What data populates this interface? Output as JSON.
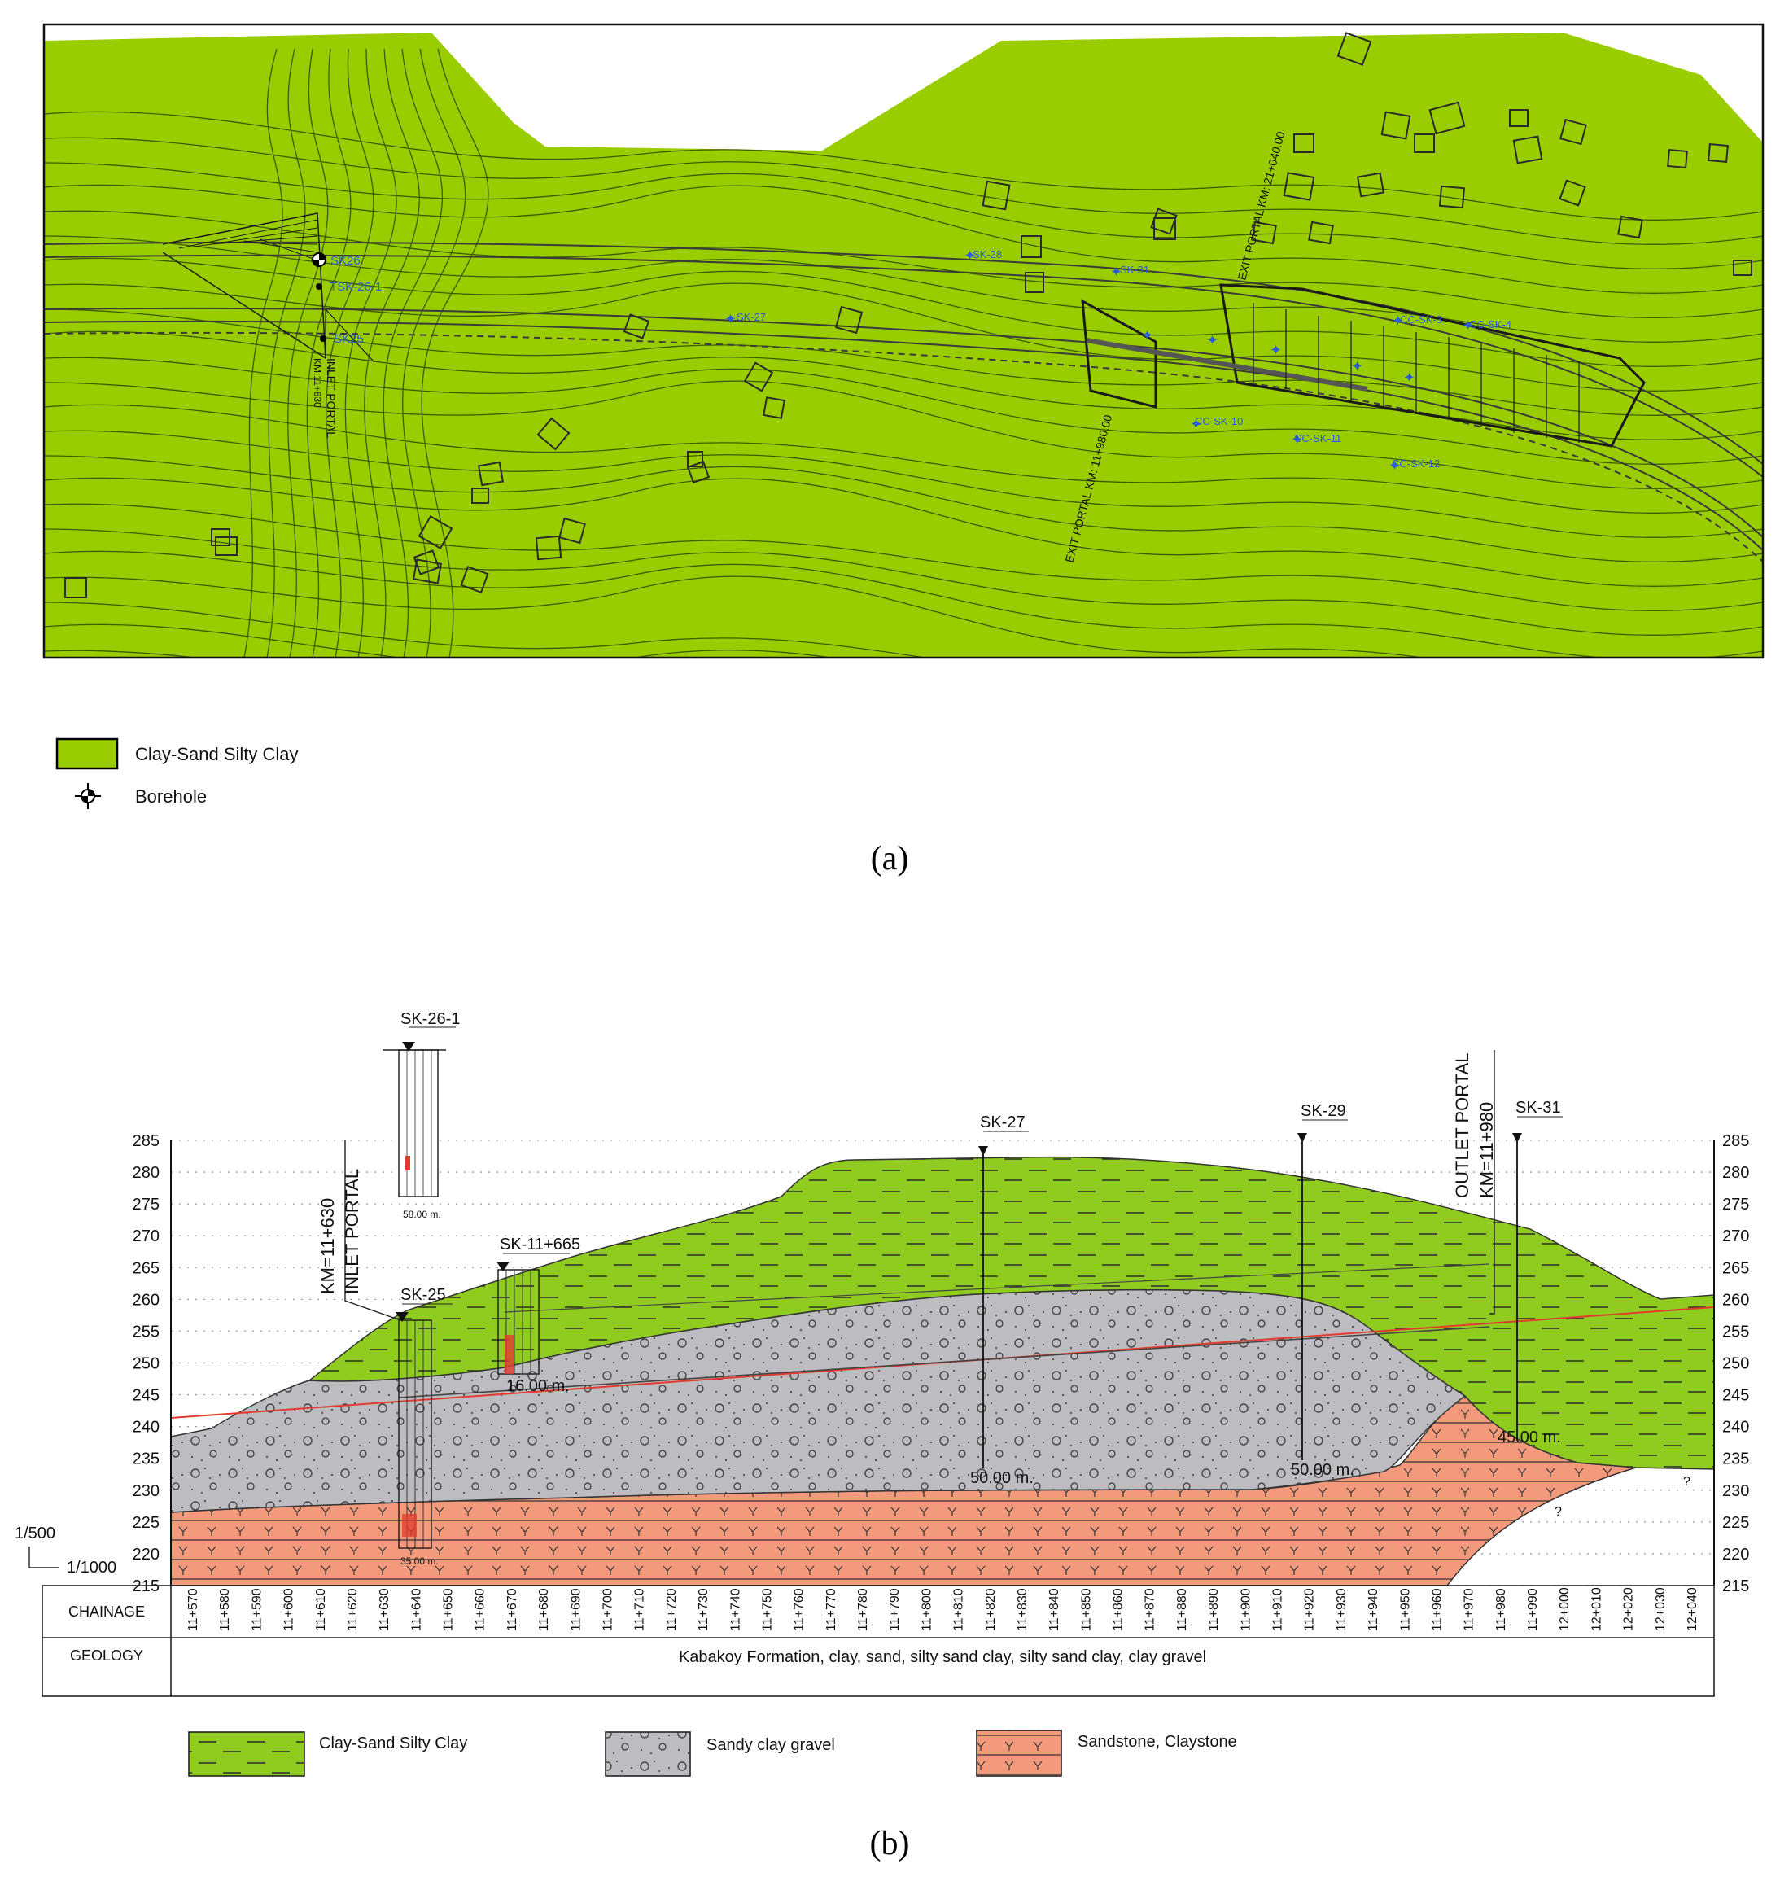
{
  "panel_a": {
    "boreholes": [
      "SK26",
      "TSK-26-1",
      "SK25",
      "SK-28",
      "SK-27",
      "SK-31",
      "CC-SK-3",
      "CC-SK-4",
      "CC-SK-10",
      "CC-SK-11",
      "CC-SK-12"
    ],
    "inlet_portal": "INLET PORTAL",
    "inlet_km": "KM:11+630",
    "exit_portal_1": "EXIT PORTAL KM: 11+980.00",
    "exit_portal_2": "EXIT PORTAL KM: 21+040.00",
    "legend": [
      {
        "label": "Clay-Sand Silty Clay",
        "color": "#9acd00"
      },
      {
        "label": "Borehole"
      }
    ],
    "caption": "(a)"
  },
  "panel_b": {
    "boreholes": {
      "sk26": "SK-26-1",
      "sk26_depth": "58.00 m.",
      "sk25": "SK-25",
      "sk25_depth": "35.00 m.",
      "sk11": "SK-11+665",
      "sk11_depth": "16.00 m.",
      "sk27": "SK-27",
      "sk27_depth": "50.00 m.",
      "sk29": "SK-29",
      "sk29_depth": "50.00 m.",
      "sk31": "SK-31",
      "sk31_depth": "45.00 m."
    },
    "inlet_portal_line1": "KM=11+630",
    "inlet_portal_line2": "INLET PORTAL",
    "outlet_portal_line1": "OUTLET PORTAL",
    "outlet_portal_line2": "KM=11+980",
    "scale_h": "1/500",
    "scale_v": "1/1000",
    "elevations": [
      "285",
      "280",
      "275",
      "270",
      "265",
      "260",
      "255",
      "250",
      "245",
      "240",
      "235",
      "230",
      "225",
      "220",
      "215"
    ],
    "chainage_label": "CHAINAGE",
    "geology_label": "GEOLOGY",
    "chainages": [
      "11+570",
      "11+580",
      "11+590",
      "11+600",
      "11+610",
      "11+620",
      "11+630",
      "11+640",
      "11+650",
      "11+660",
      "11+670",
      "11+680",
      "11+690",
      "11+700",
      "11+710",
      "11+720",
      "11+730",
      "11+740",
      "11+750",
      "11+760",
      "11+770",
      "11+780",
      "11+790",
      "11+800",
      "11+810",
      "11+820",
      "11+830",
      "11+840",
      "11+850",
      "11+860",
      "11+870",
      "11+880",
      "11+890",
      "11+900",
      "11+910",
      "11+920",
      "11+930",
      "11+940",
      "11+950",
      "11+960",
      "11+970",
      "11+980",
      "11+990",
      "12+000",
      "12+010",
      "12+020",
      "12+030",
      "12+040"
    ],
    "geology_text": "Kabakoy Formation, clay, sand, silty sand clay, silty sand clay, clay gravel",
    "question_mark": "?",
    "legend": [
      {
        "label": "Clay-Sand Silty Clay",
        "color": "#8fcc1f"
      },
      {
        "label": "Sandy clay gravel",
        "color": "#b9b9bd"
      },
      {
        "label": "Sandstone, Claystone",
        "color": "#f49a7c"
      }
    ],
    "caption": "(b)"
  }
}
